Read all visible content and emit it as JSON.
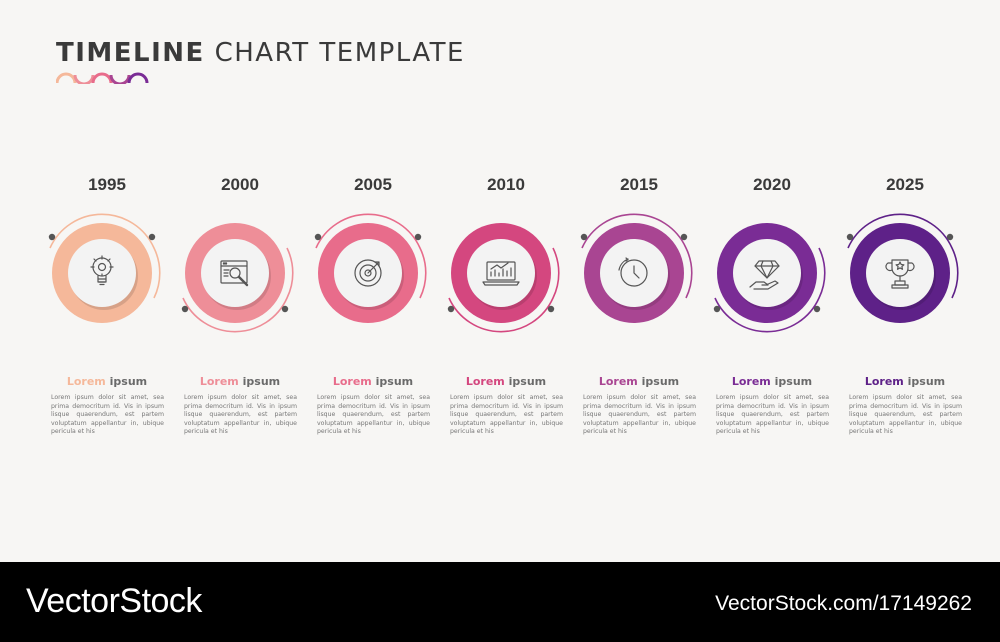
{
  "title": {
    "bold": "TIMELINE",
    "rest": "CHART TEMPLATE"
  },
  "colors": [
    "#f5b89a",
    "#ee8e98",
    "#e86c8b",
    "#d4477f",
    "#a94592",
    "#7a2c95",
    "#5e2188"
  ],
  "items": [
    {
      "year": "1995",
      "head_a": "Lorem",
      "head_b": "ipsum",
      "icon": "lightbulb-gear-icon",
      "text": "Lorem ipsum dolor sit amet, sea prima democritum id. Vis in ipsum lisque quaerendum, est partem voluptatum appellantur in, ubique pericula et his"
    },
    {
      "year": "2000",
      "head_a": "Lorem",
      "head_b": "ipsum",
      "icon": "browser-search-icon",
      "text": "Lorem ipsum dolor sit amet, sea prima democritum id. Vis in ipsum lisque quaerendum, est partem voluptatum appellantur in, ubique pericula et his"
    },
    {
      "year": "2005",
      "head_a": "Lorem",
      "head_b": "ipsum",
      "icon": "target-icon",
      "text": "Lorem ipsum dolor sit amet, sea prima democritum id. Vis in ipsum lisque quaerendum, est partem voluptatum appellantur in, ubique pericula et his"
    },
    {
      "year": "2010",
      "head_a": "Lorem",
      "head_b": "ipsum",
      "icon": "laptop-chart-icon",
      "text": "Lorem ipsum dolor sit amet, sea prima democritum id. Vis in ipsum lisque quaerendum, est partem voluptatum appellantur in, ubique pericula et his"
    },
    {
      "year": "2015",
      "head_a": "Lorem",
      "head_b": "ipsum",
      "icon": "clock-icon",
      "text": "Lorem ipsum dolor sit amet, sea prima democritum id. Vis in ipsum lisque quaerendum, est partem voluptatum appellantur in, ubique pericula et his"
    },
    {
      "year": "2020",
      "head_a": "Lorem",
      "head_b": "ipsum",
      "icon": "diamond-hand-icon",
      "text": "Lorem ipsum dolor sit amet, sea prima democritum id. Vis in ipsum lisque quaerendum, est partem voluptatum appellantur in, ubique pericula et his"
    },
    {
      "year": "2025",
      "head_a": "Lorem",
      "head_b": "ipsum",
      "icon": "trophy-icon",
      "text": "Lorem ipsum dolor sit amet, sea prima democritum id. Vis in ipsum lisque quaerendum, est partem voluptatum appellantur in, ubique pericula et his"
    }
  ],
  "footer": {
    "brand": "VectorStock",
    "url": "VectorStock.com/17149262"
  }
}
